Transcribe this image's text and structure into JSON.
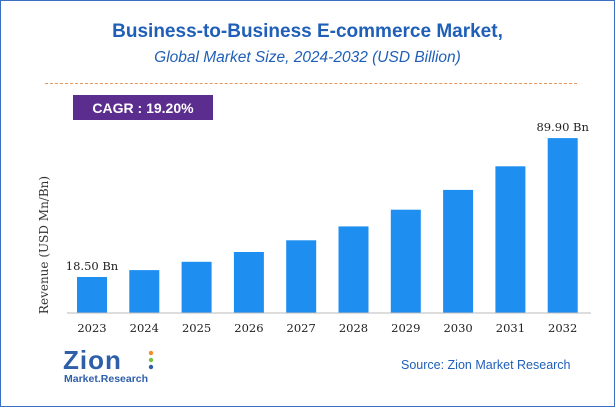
{
  "header": {
    "title": "Business-to-Business E-commerce Market,",
    "subtitle": "Global Market Size, 2024-2032 (USD Billion)"
  },
  "badge": {
    "cagr_label": "CAGR : 19.20%",
    "color": "#5b2d8e"
  },
  "chart_data": {
    "type": "bar",
    "title": "Business-to-Business E-commerce Market,",
    "subtitle": "Global Market Size, 2024-2032 (USD Billion)",
    "ylabel": "Revenue (USD Mn/Bn)",
    "xlabel": "",
    "categories": [
      "2023",
      "2024",
      "2025",
      "2026",
      "2027",
      "2028",
      "2029",
      "2030",
      "2031",
      "2032"
    ],
    "values": [
      18.5,
      22.05,
      26.29,
      31.34,
      37.36,
      44.53,
      53.08,
      63.27,
      75.42,
      89.9
    ],
    "data_labels": [
      {
        "category": "2023",
        "text": "18.50 Bn"
      },
      {
        "category": "2032",
        "text": "89.90 Bn"
      }
    ],
    "ylim": [
      0,
      92
    ],
    "grid": false,
    "bar_color": "#1e8ff0"
  },
  "footer": {
    "logo_main": "Zion",
    "logo_sub": "Market.Research",
    "source": "Source: Zion Market Research"
  },
  "colors": {
    "title": "#1f5fb8",
    "divider": "#e8955a",
    "frame": "#3a6fc4",
    "logo": "#2e5fa8"
  }
}
